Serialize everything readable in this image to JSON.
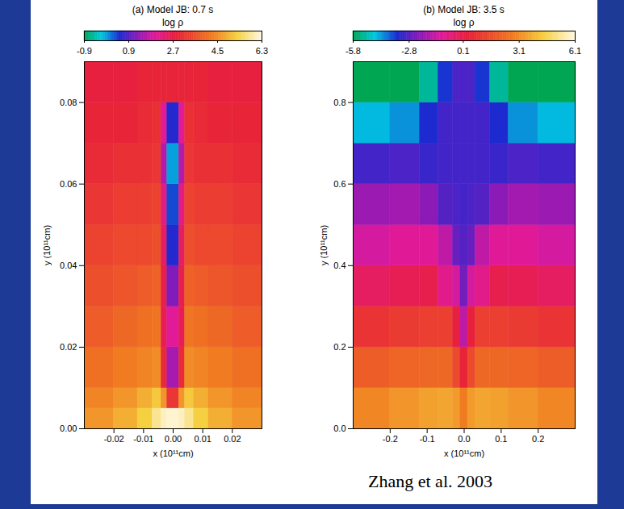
{
  "chart_data": [
    {
      "type": "heatmap",
      "title": "(a) Model JB: 0.7 s",
      "xlabel": "x (10¹¹cm)",
      "ylabel": "y (10¹¹cm)",
      "xlim": [
        -0.03,
        0.03
      ],
      "ylim": [
        0,
        0.09
      ],
      "xticks": [
        -0.02,
        -0.01,
        {
          "value": 0,
          "label": "0.00"
        },
        0.01,
        0.02
      ],
      "yticks": [
        {
          "value": 0,
          "label": "0.00"
        },
        0.02,
        0.04,
        0.06,
        0.08
      ],
      "x_edges": [
        -0.03,
        -0.02,
        -0.012,
        -0.007,
        -0.004,
        -0.002,
        0.002,
        0.004,
        0.007,
        0.012,
        0.02,
        0.03
      ],
      "y_edges": [
        0,
        0.005,
        0.01,
        0.02,
        0.03,
        0.04,
        0.05,
        0.06,
        0.07,
        0.08,
        0.09
      ],
      "cells": [
        [
          4.6,
          4.9,
          5.3,
          5.8,
          6.1,
          6.2,
          6.1,
          5.8,
          5.3,
          4.9,
          4.6
        ],
        [
          4.4,
          4.6,
          4.9,
          5.2,
          4.6,
          3.2,
          4.6,
          5.2,
          4.9,
          4.6,
          4.4
        ],
        [
          4.1,
          4.3,
          4.4,
          4.5,
          3.0,
          1.5,
          3.0,
          4.5,
          4.4,
          4.3,
          4.1
        ],
        [
          3.8,
          4.0,
          4.1,
          4.2,
          2.6,
          2.0,
          2.6,
          4.2,
          4.1,
          4.0,
          3.8
        ],
        [
          3.6,
          3.7,
          3.8,
          3.9,
          2.7,
          1.2,
          2.7,
          3.9,
          3.8,
          3.7,
          3.6
        ],
        [
          3.4,
          3.5,
          3.5,
          3.6,
          2.5,
          0.6,
          2.5,
          3.6,
          3.5,
          3.5,
          3.4
        ],
        [
          3.2,
          3.3,
          3.3,
          3.4,
          2.2,
          0.4,
          2.2,
          3.4,
          3.3,
          3.3,
          3.2
        ],
        [
          3.0,
          3.1,
          3.1,
          3.2,
          1.6,
          0.0,
          1.6,
          3.2,
          3.1,
          3.1,
          3.0
        ],
        [
          2.9,
          2.9,
          3.0,
          3.1,
          2.0,
          0.6,
          2.0,
          3.1,
          3.0,
          2.9,
          2.9
        ],
        [
          2.8,
          2.8,
          2.9,
          2.9,
          2.9,
          2.9,
          2.9,
          2.9,
          2.9,
          2.8,
          2.8
        ]
      ],
      "colorbar": {
        "label": "log ρ",
        "range": [
          -0.9,
          6.3
        ],
        "ticks": [
          -0.9,
          0.9,
          2.7,
          4.5,
          6.3
        ]
      }
    },
    {
      "type": "heatmap",
      "title": "(b) Model JB: 3.5 s",
      "xlabel": "x (10¹¹cm)",
      "ylabel": "y (10¹¹cm)",
      "xlim": [
        -0.3,
        0.3
      ],
      "ylim": [
        0,
        0.9
      ],
      "xticks": [
        -0.2,
        -0.1,
        {
          "value": 0,
          "label": "0.0"
        },
        0.1,
        0.2
      ],
      "yticks": [
        {
          "value": 0,
          "label": "0.0"
        },
        0.2,
        0.4,
        0.6,
        0.8
      ],
      "x_edges": [
        -0.3,
        -0.2,
        -0.12,
        -0.07,
        -0.03,
        -0.01,
        0.01,
        0.03,
        0.07,
        0.12,
        0.2,
        0.3
      ],
      "y_edges": [
        0,
        0.1,
        0.2,
        0.3,
        0.4,
        0.5,
        0.6,
        0.7,
        0.8,
        0.9
      ],
      "cells": [
        [
          3.0,
          3.3,
          3.5,
          3.6,
          3.4,
          2.8,
          3.4,
          3.6,
          3.5,
          3.3,
          3.0
        ],
        [
          2.0,
          2.2,
          2.3,
          2.3,
          1.5,
          0.5,
          1.5,
          2.3,
          2.3,
          2.2,
          2.0
        ],
        [
          0.9,
          1.1,
          1.2,
          1.2,
          0.3,
          -1.5,
          0.3,
          1.2,
          1.2,
          1.1,
          0.9
        ],
        [
          -0.2,
          0.0,
          0.1,
          -0.8,
          -1.2,
          -2.5,
          -1.2,
          -0.8,
          0.1,
          0.0,
          -0.2
        ],
        [
          -1.2,
          -1.0,
          -1.0,
          -1.5,
          -2.6,
          -2.8,
          -2.6,
          -1.5,
          -1.0,
          -1.0,
          -1.2
        ],
        [
          -2.0,
          -1.9,
          -2.2,
          -2.8,
          -2.9,
          -3.0,
          -2.9,
          -2.8,
          -2.2,
          -1.9,
          -2.0
        ],
        [
          -3.0,
          -2.9,
          -3.1,
          -3.0,
          -3.0,
          -3.0,
          -3.0,
          -3.0,
          -3.1,
          -2.9,
          -3.0
        ],
        [
          -4.5,
          -4.2,
          -3.4,
          -3.0,
          -3.0,
          -3.0,
          -3.0,
          -3.0,
          -3.4,
          -4.2,
          -4.5
        ],
        [
          -5.8,
          -5.8,
          -5.2,
          -3.5,
          -2.9,
          -2.9,
          -2.9,
          -3.5,
          -5.2,
          -5.8,
          -5.8
        ]
      ],
      "colorbar": {
        "label": "log ρ",
        "range": [
          -5.8,
          6.1
        ],
        "ticks": [
          -5.8,
          -2.8,
          0.1,
          3.1,
          6.1
        ]
      }
    }
  ],
  "caption": "Zhang et al. 2003"
}
